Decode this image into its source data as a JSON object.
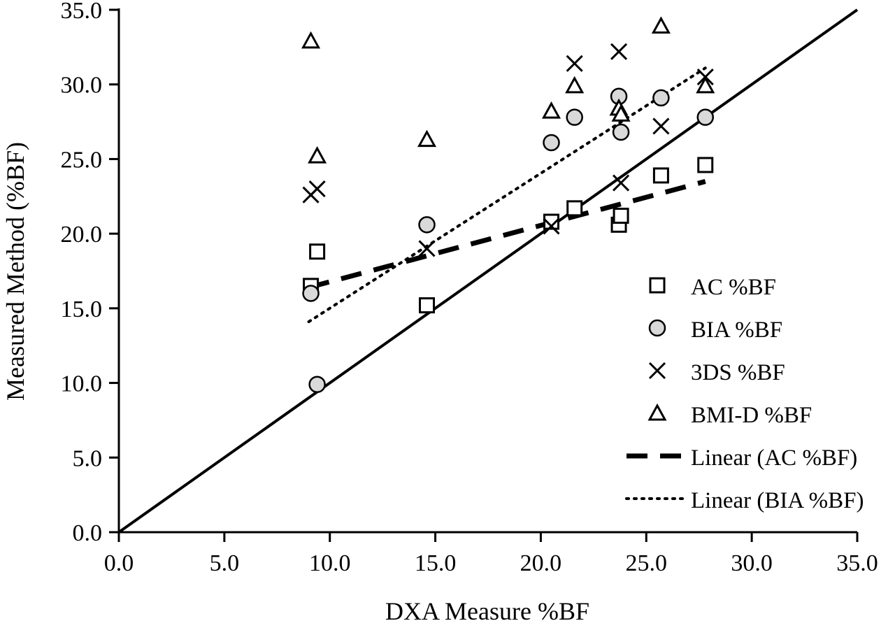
{
  "chart_data": {
    "type": "scatter",
    "title": "",
    "xlabel": "DXA Measure %BF",
    "ylabel": "Measured Method (%BF)",
    "xlim": [
      0,
      35
    ],
    "ylim": [
      0,
      35
    ],
    "x_ticks": [
      "0.0",
      "5.0",
      "10.0",
      "15.0",
      "20.0",
      "25.0",
      "30.0",
      "35.0"
    ],
    "y_ticks": [
      "0.0",
      "5.0",
      "10.0",
      "15.0",
      "20.0",
      "25.0",
      "30.0",
      "35.0"
    ],
    "grid": false,
    "legend_position": "right",
    "identity_line": {
      "from": [
        0,
        0
      ],
      "to": [
        35,
        35
      ]
    },
    "series": [
      {
        "name": "AC %BF",
        "marker": "square",
        "points": [
          [
            9.1,
            16.5
          ],
          [
            9.4,
            18.8
          ],
          [
            14.6,
            15.2
          ],
          [
            20.5,
            20.8
          ],
          [
            21.6,
            21.7
          ],
          [
            23.7,
            20.6
          ],
          [
            23.8,
            21.2
          ],
          [
            25.7,
            23.9
          ],
          [
            27.8,
            24.6
          ]
        ]
      },
      {
        "name": "BIA %BF",
        "marker": "circle",
        "points": [
          [
            9.1,
            16.0
          ],
          [
            9.4,
            9.9
          ],
          [
            14.6,
            20.6
          ],
          [
            20.5,
            26.1
          ],
          [
            21.6,
            27.8
          ],
          [
            23.7,
            29.2
          ],
          [
            23.8,
            26.8
          ],
          [
            25.7,
            29.1
          ],
          [
            27.8,
            27.8
          ]
        ]
      },
      {
        "name": "3DS %BF",
        "marker": "x",
        "points": [
          [
            9.1,
            22.6
          ],
          [
            9.4,
            23.0
          ],
          [
            14.6,
            19.0
          ],
          [
            20.5,
            20.5
          ],
          [
            21.6,
            31.4
          ],
          [
            23.7,
            32.2
          ],
          [
            23.8,
            23.4
          ],
          [
            25.7,
            27.2
          ],
          [
            27.8,
            30.5
          ]
        ]
      },
      {
        "name": "BMI-D %BF",
        "marker": "triangle",
        "points": [
          [
            9.1,
            32.9
          ],
          [
            9.4,
            25.2
          ],
          [
            14.6,
            26.3
          ],
          [
            20.5,
            28.2
          ],
          [
            21.6,
            29.9
          ],
          [
            23.7,
            28.4
          ],
          [
            23.8,
            28.0
          ],
          [
            25.7,
            33.9
          ],
          [
            27.8,
            29.9
          ]
        ]
      }
    ],
    "trendlines": [
      {
        "name": "Linear (AC %BF)",
        "style": "dashed",
        "from": [
          9.0,
          16.4
        ],
        "to": [
          27.8,
          23.5
        ]
      },
      {
        "name": "Linear (BIA %BF)",
        "style": "dotted",
        "from": [
          9.0,
          14.1
        ],
        "to": [
          27.8,
          31.1
        ]
      }
    ]
  }
}
